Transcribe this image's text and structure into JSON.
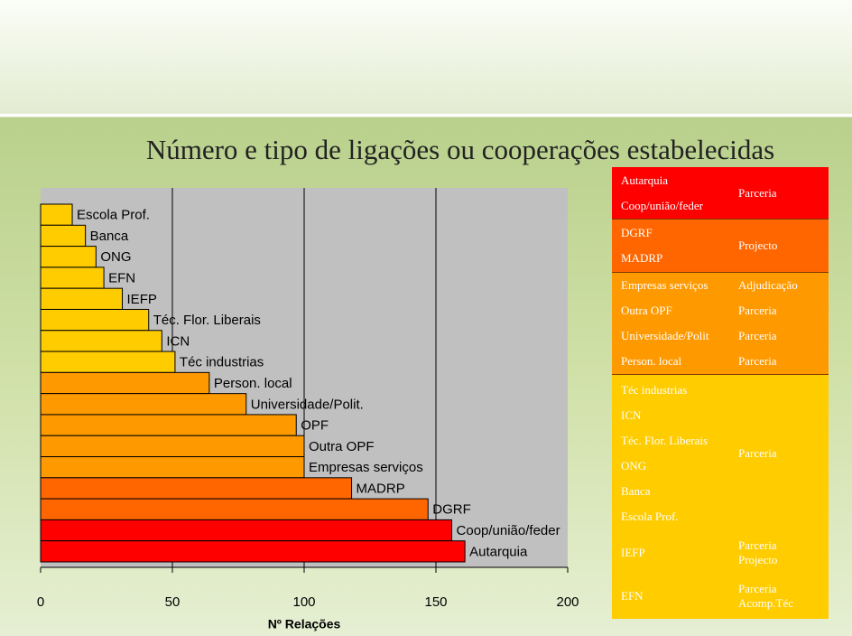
{
  "chart_data": {
    "type": "hbar",
    "title": "Número e tipo de ligações ou cooperações estabelecidas",
    "x_label": "Nº Relações",
    "categories": [
      "Escola Prof.",
      "Banca",
      "ONG",
      "EFN",
      "IEFP",
      "Téc. Flor. Liberais",
      "ICN",
      "Téc industrias",
      "Person. local",
      "Universidade/Polit.",
      "OPF",
      "Outra OPF",
      "Empresas serviços",
      "MADRP",
      "DGRF",
      "Coop/união/feder",
      "Autarquia"
    ],
    "values": [
      12,
      17,
      21,
      24,
      31,
      41,
      46,
      51,
      64,
      78,
      97,
      100,
      100,
      118,
      147,
      156,
      161
    ],
    "colors": [
      "#ffcc00",
      "#ffcc00",
      "#ffcc00",
      "#ffcc00",
      "#ffcc00",
      "#ffcc00",
      "#ffcc00",
      "#ffcc00",
      "#ff9900",
      "#ff9900",
      "#ff9900",
      "#ff9900",
      "#ff9900",
      "#ff6600",
      "#ff6600",
      "#ff0000",
      "#ff0000"
    ],
    "xlim": [
      0,
      200
    ],
    "xticks": [
      0,
      50,
      100,
      150,
      200
    ],
    "grid": true
  },
  "table": {
    "blocks": [
      {
        "color": "#ff0000",
        "entities": [
          "Autarquia",
          "Coop/união/feder"
        ],
        "types": [
          "Parceria"
        ]
      },
      {
        "color": "#ff6600",
        "entities": [
          "DGRF",
          "MADRP"
        ],
        "types": [
          "Projecto"
        ]
      },
      {
        "color": "#ff9900",
        "entities": [
          "Empresas serviços"
        ],
        "types": [
          "Adjudicação"
        ]
      },
      {
        "color": "#ff9900",
        "entities": [
          "Outra OPF"
        ],
        "types": [
          "Parceria"
        ]
      },
      {
        "color": "#ff9900",
        "entities": [
          "Universidade/Polit"
        ],
        "types": [
          "Parceria"
        ]
      },
      {
        "color": "#ff9900",
        "entities": [
          "Person. local"
        ],
        "types": [
          "Parceria"
        ]
      },
      {
        "color": "#ffcc00",
        "entities": [
          "Téc industrias",
          "ICN",
          "Téc. Flor. Liberais",
          "ONG",
          "Banca",
          "Escola Prof."
        ],
        "types": [
          "Parceria"
        ]
      },
      {
        "color": "#ffcc00",
        "entities": [
          "IEFP"
        ],
        "types": [
          "Parceria",
          "Projecto"
        ]
      },
      {
        "color": "#ffcc00",
        "entities": [
          "EFN"
        ],
        "types": [
          "Parceria",
          "Acomp.Téc"
        ]
      }
    ]
  }
}
